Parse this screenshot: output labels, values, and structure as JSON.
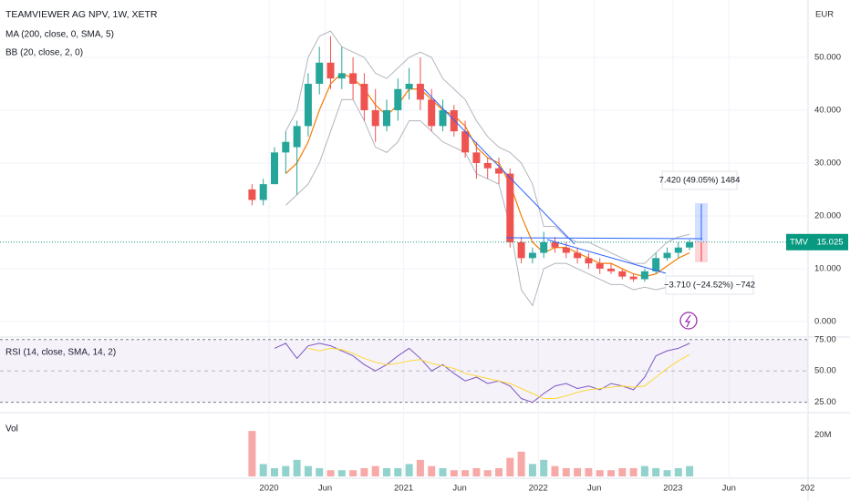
{
  "chart_data": [
    {
      "type": "candlestick",
      "title": "TEAMVIEWER AG NPV, 1W, XETR",
      "y_unit": "EUR",
      "x": [
        "2019-11",
        "2019-12",
        "2020-01",
        "2020-02",
        "2020-03",
        "2020-04",
        "2020-05",
        "2020-06",
        "2020-07",
        "2020-08",
        "2020-09",
        "2020-10",
        "2020-11",
        "2020-12",
        "2021-01",
        "2021-02",
        "2021-03",
        "2021-04",
        "2021-05",
        "2021-06",
        "2021-07",
        "2021-08",
        "2021-09",
        "2021-10",
        "2021-11",
        "2021-12",
        "2022-01",
        "2022-02",
        "2022-03",
        "2022-04",
        "2022-05",
        "2022-06",
        "2022-07",
        "2022-08",
        "2022-09",
        "2022-10",
        "2022-11",
        "2022-12",
        "2023-01",
        "2023-02"
      ],
      "open": [
        25,
        23,
        26,
        32,
        33,
        37,
        45,
        49,
        46,
        47,
        45,
        40,
        37,
        40,
        44,
        45,
        42,
        37,
        40,
        36,
        32,
        30,
        29,
        28,
        15,
        12,
        13,
        15,
        14,
        13,
        12,
        11,
        10,
        9.5,
        8.5,
        8,
        9.5,
        12,
        13,
        14
      ],
      "high": [
        26,
        27,
        33,
        36,
        38,
        47,
        52,
        54,
        52,
        50,
        47,
        44,
        42,
        46,
        48,
        50,
        44,
        42,
        41,
        38,
        34,
        31,
        31,
        29,
        16,
        14,
        17,
        16,
        15,
        14,
        13,
        12,
        11,
        10,
        9,
        10,
        13,
        14,
        15,
        15.5
      ],
      "low": [
        22,
        22,
        26,
        28,
        24,
        35,
        43,
        44,
        44,
        42,
        38,
        34,
        36,
        38,
        42,
        40,
        36,
        36,
        35,
        31,
        27,
        27,
        26,
        14,
        11,
        11,
        12,
        13,
        12,
        11,
        10,
        9,
        9,
        8,
        7.5,
        7.5,
        9,
        11.5,
        12,
        13.5
      ],
      "close": [
        23,
        26,
        32,
        34,
        37,
        45,
        49,
        46,
        47,
        45,
        40,
        37,
        40,
        44,
        45,
        42,
        37,
        40,
        36,
        32,
        30,
        29,
        28,
        15,
        12,
        13,
        15,
        14,
        13,
        12,
        11,
        10,
        9.5,
        8.5,
        8,
        9.5,
        12,
        13,
        14,
        15.025
      ],
      "up_color": "#26a69a",
      "down_color": "#ef5350",
      "overlays": [
        {
          "name": "MA (200, close, 0, SMA, 5)",
          "color": "#f57c00",
          "values": [
            null,
            null,
            null,
            28,
            30,
            34,
            40,
            45,
            47,
            46,
            44,
            41,
            39,
            41,
            44,
            44,
            42,
            40,
            39,
            37,
            33,
            31,
            30,
            26,
            20,
            15,
            13,
            14,
            14,
            13,
            12,
            11,
            11,
            10,
            9,
            8.5,
            9,
            10.5,
            12,
            13
          ]
        },
        {
          "name": "BB (20, close, 2, 0)",
          "color": "#b2b5be",
          "upper": [
            null,
            null,
            null,
            36,
            40,
            50,
            54,
            55,
            52,
            51,
            50,
            47,
            46,
            48,
            50,
            51,
            50,
            46,
            44,
            42,
            38,
            35,
            33,
            32,
            30,
            26,
            18,
            18,
            16,
            15,
            15,
            14,
            13,
            12,
            11,
            11,
            13,
            15,
            16,
            16.5
          ],
          "lower": [
            null,
            null,
            null,
            22,
            24,
            26,
            30,
            36,
            42,
            42,
            38,
            33,
            32,
            34,
            38,
            38,
            36,
            34,
            33,
            32,
            28,
            27,
            26,
            18,
            6,
            3,
            10,
            11,
            11,
            10,
            9,
            8,
            7,
            7,
            6,
            6.5,
            6,
            6.5,
            8,
            8.5
          ]
        }
      ],
      "last_price": {
        "symbol": "TMV",
        "value": 15.025,
        "color": "#089981"
      },
      "annotations": [
        "7.420 (49.05%) 1484",
        "−3.710 (−24.52%) −742"
      ],
      "ylim": [
        -2.6,
        60
      ],
      "yticks": [
        {
          "value": 50,
          "label": "50.000"
        },
        {
          "value": 40,
          "label": "40.000"
        },
        {
          "value": 30,
          "label": "30.000"
        },
        {
          "value": 20,
          "label": "20.000"
        },
        {
          "value": 10,
          "label": "10.000"
        },
        {
          "value": 0,
          "label": "0.000"
        }
      ],
      "xticks": [
        {
          "value": "2020-01",
          "label": "2020"
        },
        {
          "value": "2020-06",
          "label": "Jun"
        },
        {
          "value": "2021-01",
          "label": "2021"
        },
        {
          "value": "2021-06",
          "label": "Jun"
        },
        {
          "value": "2022-01",
          "label": "2022"
        },
        {
          "value": "2022-06",
          "label": "Jun"
        },
        {
          "value": "2023-01",
          "label": "2023"
        },
        {
          "value": "2023-06",
          "label": "Jun"
        },
        {
          "value": "2024-01",
          "label": "202"
        }
      ],
      "grid": true
    },
    {
      "type": "line",
      "title": "RSI (14, close, SMA, 14, 2)",
      "series": [
        {
          "color": "#7e57c2",
          "values": [
            null,
            null,
            68,
            72,
            60,
            70,
            72,
            70,
            66,
            62,
            55,
            50,
            55,
            62,
            68,
            60,
            50,
            55,
            48,
            42,
            45,
            40,
            42,
            38,
            28,
            25,
            32,
            38,
            40,
            36,
            38,
            35,
            40,
            38,
            35,
            45,
            62,
            66,
            68,
            72
          ]
        },
        {
          "color": "#fdd835",
          "values": [
            null,
            null,
            null,
            null,
            null,
            68,
            66,
            68,
            67,
            64,
            60,
            57,
            55,
            56,
            58,
            59,
            56,
            54,
            52,
            48,
            46,
            44,
            42,
            40,
            36,
            32,
            28,
            28,
            30,
            33,
            35,
            36,
            37,
            38,
            37,
            38,
            45,
            52,
            58,
            63
          ]
        }
      ],
      "band_color": "#7e57c2",
      "ylim": [
        17.5,
        77
      ],
      "yticks": [
        {
          "value": 75,
          "label": "75.00"
        },
        {
          "value": 50,
          "label": "50.00"
        },
        {
          "value": 25,
          "label": "25.00"
        }
      ]
    },
    {
      "type": "bar",
      "title": "Vol",
      "values": [
        22000000,
        6000000,
        4000000,
        5000000,
        8000000,
        5000000,
        4000000,
        3000000,
        3000000,
        3000000,
        4000000,
        5000000,
        4000000,
        4000000,
        6000000,
        8000000,
        5000000,
        4000000,
        3000000,
        3000000,
        4000000,
        3000000,
        4000000,
        9000000,
        12000000,
        6000000,
        8000000,
        5000000,
        4000000,
        4000000,
        4000000,
        3000000,
        3000000,
        4000000,
        4000000,
        5000000,
        4000000,
        3000000,
        4000000,
        5000000
      ],
      "ylim": [
        0,
        30000000
      ],
      "yticks": [
        {
          "value": 20000000,
          "label": "20M"
        }
      ]
    }
  ]
}
